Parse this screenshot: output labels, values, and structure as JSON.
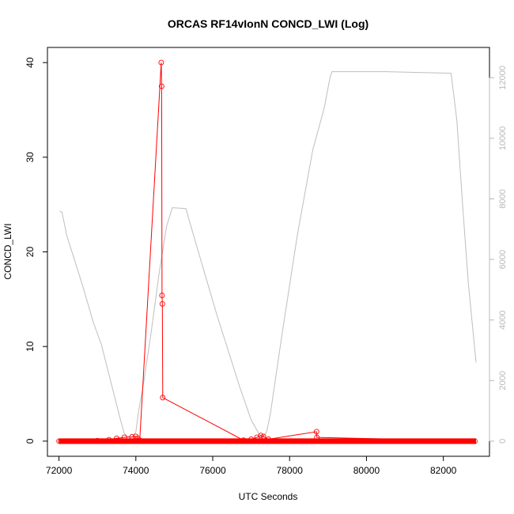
{
  "chart_data": {
    "type": "line",
    "title": "ORCAS RF14vIonN CONCD_LWI (Log)",
    "xlabel": "UTC Seconds",
    "ylabel": "CONCD_LWI",
    "xlim": [
      71700,
      83200
    ],
    "ylim": [
      -1.6,
      41.6
    ],
    "y2lim": [
      -500,
      13000
    ],
    "x_ticks": [
      "72000",
      "74000",
      "76000",
      "78000",
      "80000",
      "82000"
    ],
    "y_ticks": [
      "0",
      "10",
      "20",
      "30",
      "40"
    ],
    "y2_ticks": [
      "0",
      "2000",
      "4000",
      "6000",
      "8000",
      "10000",
      "12000"
    ],
    "colors": {
      "concd": "#ff0000",
      "altitude": "#bebebe"
    },
    "series": [
      {
        "axis": "left",
        "style": "points-and-line",
        "x_range": [
          72000,
          82850
        ],
        "baseline": 0.0,
        "points": [
          [
            73000,
            0.05
          ],
          [
            73300,
            0.15
          ],
          [
            73500,
            0.3
          ],
          [
            73700,
            0.4
          ],
          [
            73900,
            0.45
          ],
          [
            74000,
            0.5
          ],
          [
            74050,
            0.3
          ],
          [
            74100,
            0.1
          ],
          [
            74660,
            40.0
          ],
          [
            74670,
            37.5
          ],
          [
            74680,
            15.4
          ],
          [
            74690,
            14.5
          ],
          [
            74700,
            4.6
          ],
          [
            76800,
            0.1
          ],
          [
            77000,
            0.2
          ],
          [
            77150,
            0.4
          ],
          [
            77250,
            0.6
          ],
          [
            77320,
            0.5
          ],
          [
            77450,
            0.2
          ],
          [
            78700,
            1.0
          ],
          [
            78710,
            0.4
          ]
        ]
      },
      {
        "axis": "right",
        "style": "line",
        "points": [
          [
            72020,
            7600
          ],
          [
            72080,
            7550
          ],
          [
            72200,
            6800
          ],
          [
            72600,
            5200
          ],
          [
            72900,
            3900
          ],
          [
            73100,
            3200
          ],
          [
            73300,
            2200
          ],
          [
            73500,
            1200
          ],
          [
            73600,
            700
          ],
          [
            73700,
            250
          ],
          [
            73800,
            150
          ],
          [
            73900,
            120
          ],
          [
            74000,
            300
          ],
          [
            74060,
            900
          ],
          [
            74200,
            1900
          ],
          [
            74400,
            3600
          ],
          [
            74600,
            5500
          ],
          [
            74800,
            7100
          ],
          [
            74950,
            7710
          ],
          [
            75300,
            7680
          ],
          [
            75500,
            6800
          ],
          [
            75800,
            5500
          ],
          [
            76100,
            4200
          ],
          [
            76400,
            3000
          ],
          [
            76700,
            1800
          ],
          [
            77000,
            700
          ],
          [
            77200,
            250
          ],
          [
            77300,
            120
          ],
          [
            77400,
            300
          ],
          [
            77500,
            900
          ],
          [
            77800,
            3500
          ],
          [
            78200,
            6800
          ],
          [
            78600,
            9600
          ],
          [
            78750,
            10300
          ],
          [
            78900,
            11000
          ],
          [
            79050,
            12000
          ],
          [
            79100,
            12200
          ],
          [
            80500,
            12200
          ],
          [
            82200,
            12150
          ],
          [
            82350,
            10600
          ],
          [
            82500,
            7800
          ],
          [
            82650,
            5200
          ],
          [
            82850,
            2600
          ]
        ]
      }
    ]
  }
}
